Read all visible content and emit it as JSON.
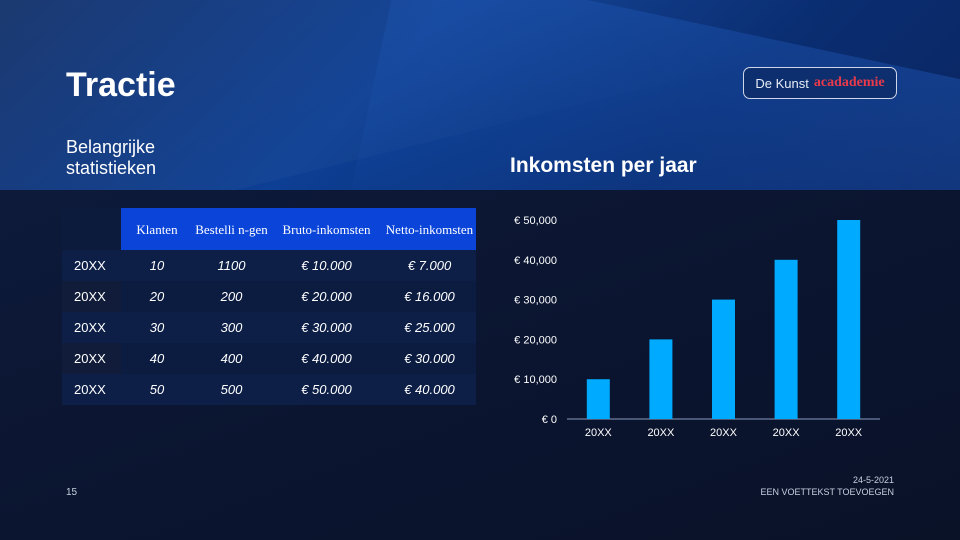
{
  "slide": {
    "title": "Tractie",
    "subtitle": "Belangrijke statistieken",
    "logo": {
      "text_part1": "De Kunst",
      "text_part2": "acadademie"
    },
    "page_number": "15",
    "footer": {
      "date": "24-5-2021",
      "text": "EEN VOETTEKST TOEVOEGEN"
    }
  },
  "table": {
    "headers": [
      "",
      "Klanten",
      "Bestelli n-gen",
      "Bruto-inkomsten",
      "Netto-inkomsten"
    ],
    "rows": [
      [
        "20XX",
        "10",
        "1100",
        "€ 10.000",
        "€ 7.000"
      ],
      [
        "20XX",
        "20",
        "200",
        "€ 20.000",
        "€ 16.000"
      ],
      [
        "20XX",
        "30",
        "300",
        "€ 30.000",
        "€ 25.000"
      ],
      [
        "20XX",
        "40",
        "400",
        "€ 40.000",
        "€ 30.000"
      ],
      [
        "20XX",
        "50",
        "500",
        "€ 50.000",
        "€ 40.000"
      ]
    ]
  },
  "chart_data": {
    "type": "bar",
    "title": "Inkomsten per jaar",
    "categories": [
      "20XX",
      "20XX",
      "20XX",
      "20XX",
      "20XX"
    ],
    "values": [
      10000,
      20000,
      30000,
      40000,
      50000
    ],
    "ylim": [
      0,
      50000
    ],
    "y_ticks": [
      0,
      10000,
      20000,
      30000,
      40000,
      50000
    ],
    "y_tick_labels": [
      "€ 0",
      "€ 10,000",
      "€ 20,000",
      "€ 30,000",
      "€ 40,000",
      "€ 50,000"
    ],
    "grid": false,
    "bar_color": "#00aaff"
  },
  "colors": {
    "table_header": "#0a44d9",
    "bar": "#00aaff",
    "logo_accent": "#e83a4a"
  }
}
